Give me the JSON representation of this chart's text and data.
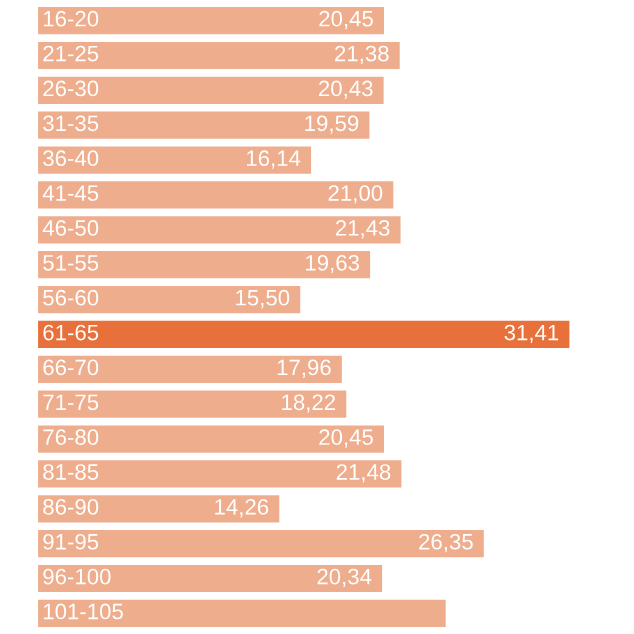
{
  "chart_data": {
    "type": "bar",
    "orientation": "horizontal",
    "categories": [
      "16-20",
      "21-25",
      "26-30",
      "31-35",
      "36-40",
      "41-45",
      "46-50",
      "51-55",
      "56-60",
      "61-65",
      "66-70",
      "71-75",
      "76-80",
      "81-85",
      "86-90",
      "91-95",
      "96-100",
      "101-105"
    ],
    "values": [
      20.45,
      21.38,
      20.43,
      19.59,
      16.14,
      21.0,
      21.43,
      19.63,
      15.5,
      31.41,
      17.96,
      18.22,
      20.45,
      21.48,
      14.26,
      26.35,
      20.34,
      24.1
    ],
    "value_labels": [
      "20,45",
      "21,38",
      "20,43",
      "19,59",
      "16,14",
      "21,00",
      "21,43",
      "19,63",
      "15,50",
      "31,41",
      "17,96",
      "18,22",
      "20,45",
      "21,48",
      "14,26",
      "26,35",
      "20,34",
      null
    ],
    "colors": [
      "#eeae8e",
      "#eeae8e",
      "#eeae8e",
      "#eeae8e",
      "#eeae8e",
      "#eeae8e",
      "#eeae8e",
      "#eeae8e",
      "#eeae8e",
      "#e8703a",
      "#eeae8e",
      "#eeae8e",
      "#eeae8e",
      "#eeae8e",
      "#eeae8e",
      "#eeae8e",
      "#eeae8e",
      "#eeae8e"
    ],
    "legend": false
  }
}
